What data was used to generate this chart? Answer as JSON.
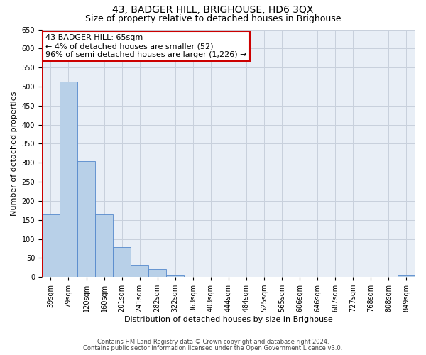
{
  "title": "43, BADGER HILL, BRIGHOUSE, HD6 3QX",
  "subtitle": "Size of property relative to detached houses in Brighouse",
  "xlabel": "Distribution of detached houses by size in Brighouse",
  "ylabel": "Number of detached properties",
  "categories": [
    "39sqm",
    "79sqm",
    "120sqm",
    "160sqm",
    "201sqm",
    "241sqm",
    "282sqm",
    "322sqm",
    "363sqm",
    "403sqm",
    "444sqm",
    "484sqm",
    "525sqm",
    "565sqm",
    "606sqm",
    "646sqm",
    "687sqm",
    "727sqm",
    "768sqm",
    "808sqm",
    "849sqm"
  ],
  "values": [
    165,
    513,
    305,
    165,
    78,
    32,
    20,
    5,
    0,
    0,
    0,
    0,
    0,
    0,
    0,
    0,
    0,
    0,
    0,
    0,
    5
  ],
  "bar_color": "#b8d0e8",
  "bar_edge_color": "#5588cc",
  "highlight_bar_color": "#cc0000",
  "ylim": [
    0,
    650
  ],
  "yticks": [
    0,
    50,
    100,
    150,
    200,
    250,
    300,
    350,
    400,
    450,
    500,
    550,
    600,
    650
  ],
  "annotation_title": "43 BADGER HILL: 65sqm",
  "annotation_line1": "← 4% of detached houses are smaller (52)",
  "annotation_line2": "96% of semi-detached houses are larger (1,226) →",
  "annotation_box_color": "#ffffff",
  "annotation_box_edge_color": "#cc0000",
  "footer_line1": "Contains HM Land Registry data © Crown copyright and database right 2024.",
  "footer_line2": "Contains public sector information licensed under the Open Government Licence v3.0.",
  "background_color": "#ffffff",
  "grid_color": "#c8d0dc",
  "title_fontsize": 10,
  "subtitle_fontsize": 9,
  "axis_label_fontsize": 8,
  "tick_fontsize": 7,
  "annotation_fontsize": 8
}
